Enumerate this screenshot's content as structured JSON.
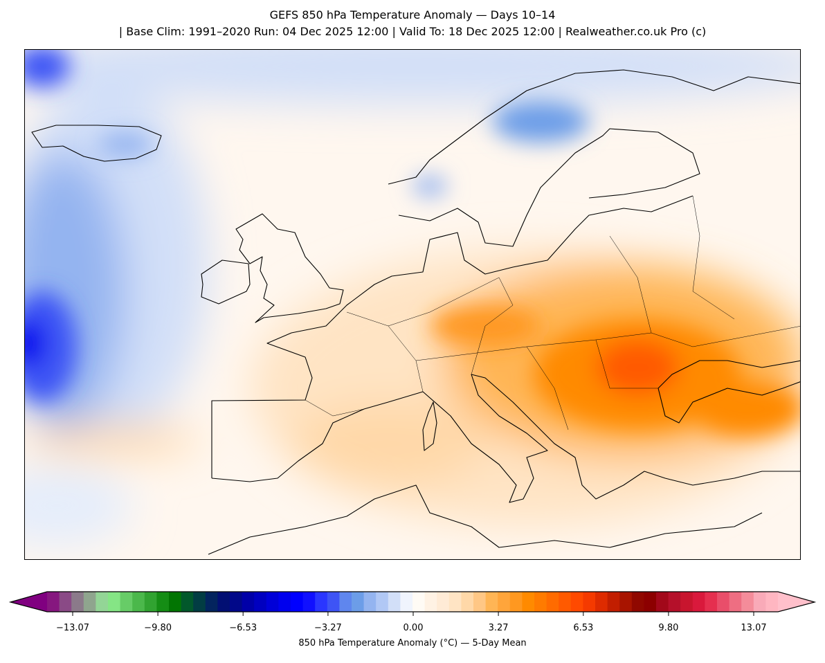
{
  "title": {
    "line1": "GEFS 850 hPa Temperature Anomaly — Days 10–14",
    "line2": "| Base Clim: 1991–2020 Run: 04 Dec 2025 12:00 | Valid To: 18 Dec 2025 12:00 | Realweather.co.uk Pro (c)"
  },
  "colorbar": {
    "label": "850 hPa Temperature Anomaly (°C) — 5-Day Mean",
    "ticks": [
      {
        "value": -13.07,
        "label": "−13.07"
      },
      {
        "value": -9.8,
        "label": "−9.80"
      },
      {
        "value": -6.53,
        "label": "−6.53"
      },
      {
        "value": -3.27,
        "label": "−3.27"
      },
      {
        "value": 0.0,
        "label": "0.00"
      },
      {
        "value": 3.27,
        "label": "3.27"
      },
      {
        "value": 6.53,
        "label": "6.53"
      },
      {
        "value": 9.8,
        "label": "9.80"
      },
      {
        "value": 13.07,
        "label": "13.07"
      }
    ],
    "range": [
      -14.0,
      14.0
    ],
    "under_color": "#800080",
    "over_color": "#ffc0cb",
    "colors": [
      "#86177f",
      "#8a4a86",
      "#8b7a8a",
      "#8fa58e",
      "#93d596",
      "#85e585",
      "#67cc67",
      "#4bb84b",
      "#31a331",
      "#158d15",
      "#027502",
      "#02582b",
      "#023d43",
      "#03245e",
      "#020f73",
      "#010889",
      "#0000a8",
      "#0000c0",
      "#0000d8",
      "#0000ee",
      "#0000ff",
      "#1010ff",
      "#2a36ff",
      "#3e54f5",
      "#5f86ee",
      "#6c9de8",
      "#94b4f0",
      "#b1c8f5",
      "#d2dff8",
      "#f0f4fd",
      "#fffbf5",
      "#fff2e4",
      "#ffebd6",
      "#ffe4c4",
      "#ffd8a8",
      "#ffc785",
      "#ffb555",
      "#ffa53b",
      "#ff9820",
      "#ff8a00",
      "#ff7b00",
      "#ff6b00",
      "#ff5a00",
      "#ff4a00",
      "#f53a00",
      "#de2b00",
      "#c21e00",
      "#a81400",
      "#900800",
      "#8c0000",
      "#a2081a",
      "#b5102a",
      "#c8152e",
      "#d9193c",
      "#e52f4f",
      "#e94e6a",
      "#ee6e82",
      "#f48c9a",
      "#f9aab8",
      "#ffb6c1"
    ]
  }
}
